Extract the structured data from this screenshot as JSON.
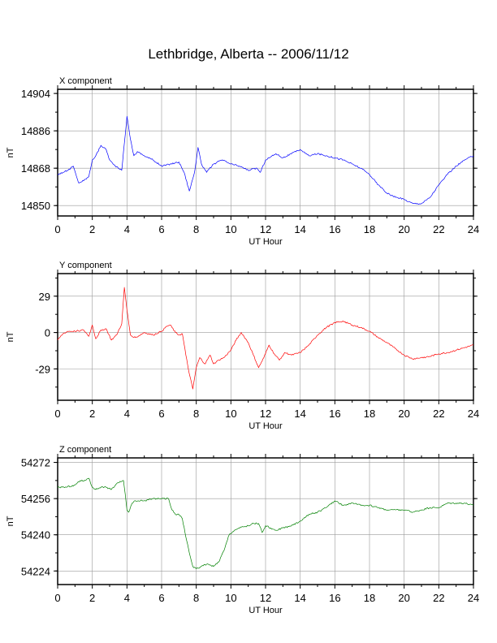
{
  "page": {
    "title": "Lethbridge, Alberta -- 2006/11/12"
  },
  "chart_data": [
    {
      "type": "line",
      "title": "X component",
      "xlabel": "UT Hour",
      "ylabel": "nT",
      "xlim": [
        0,
        24
      ],
      "ylim": [
        14845,
        14906
      ],
      "xticks": [
        0,
        2,
        4,
        6,
        8,
        10,
        12,
        14,
        16,
        18,
        20,
        22,
        24
      ],
      "yticks": [
        14850,
        14868,
        14886,
        14904
      ],
      "grid": true,
      "color": "#0000ff",
      "series": [
        {
          "x": [
            0,
            0.3,
            0.6,
            0.9,
            1.2,
            1.5,
            1.8,
            2.0,
            2.2,
            2.5,
            2.8,
            3.0,
            3.2,
            3.5,
            3.7,
            3.85,
            4.0,
            4.2,
            4.4,
            4.6,
            5.0,
            5.5,
            6.0,
            6.5,
            7.0,
            7.3,
            7.6,
            7.9,
            8.1,
            8.3,
            8.6,
            9.0,
            9.5,
            10.0,
            10.5,
            11.0,
            11.5,
            11.7,
            12.0,
            12.2,
            12.6,
            13.0,
            13.5,
            14.0,
            14.5,
            15.0,
            15.5,
            16.0,
            16.5,
            17.0,
            17.5,
            18.0,
            18.5,
            19.0,
            19.5,
            20.0,
            20.5,
            21.0,
            21.5,
            22.0,
            22.5,
            23.0,
            23.5,
            24.0
          ],
          "y": [
            14865,
            14866,
            14867,
            14869,
            14861,
            14862,
            14864,
            14872,
            14874,
            14879,
            14877,
            14872,
            14870,
            14868,
            14867,
            14880,
            14893,
            14882,
            14874,
            14876,
            14874,
            14872,
            14869,
            14870,
            14871,
            14866,
            14857,
            14866,
            14878,
            14870,
            14866,
            14870,
            14872,
            14870,
            14869,
            14867,
            14868,
            14866,
            14872,
            14873,
            14875,
            14873,
            14875,
            14877,
            14874,
            14875,
            14874,
            14873,
            14872,
            14870,
            14868,
            14865,
            14860,
            14856,
            14854,
            14853,
            14851,
            14851,
            14854,
            14860,
            14865,
            14869,
            14872,
            14874
          ]
        }
      ]
    },
    {
      "type": "line",
      "title": "Y component",
      "xlabel": "UT Hour",
      "ylabel": "nT",
      "xlim": [
        0,
        24
      ],
      "ylim": [
        -54,
        47
      ],
      "xticks": [
        0,
        2,
        4,
        6,
        8,
        10,
        12,
        14,
        16,
        18,
        20,
        22,
        24
      ],
      "yticks": [
        -29,
        0,
        29
      ],
      "grid": true,
      "color": "#ff0000",
      "series": [
        {
          "x": [
            0,
            0.3,
            0.6,
            1.0,
            1.5,
            1.8,
            2.0,
            2.2,
            2.5,
            2.8,
            3.1,
            3.4,
            3.7,
            3.85,
            4.0,
            4.2,
            4.5,
            5.0,
            5.5,
            6.0,
            6.3,
            6.5,
            6.8,
            7.0,
            7.2,
            7.4,
            7.6,
            7.8,
            8.0,
            8.2,
            8.5,
            8.8,
            9.0,
            9.3,
            9.6,
            10.0,
            10.3,
            10.6,
            11.0,
            11.3,
            11.6,
            11.9,
            12.2,
            12.5,
            12.8,
            13.1,
            13.5,
            14.0,
            14.5,
            15.0,
            15.5,
            16.0,
            16.5,
            17.0,
            17.5,
            18.0,
            18.5,
            19.0,
            19.5,
            20.0,
            20.5,
            21.0,
            21.5,
            22.0,
            22.5,
            23.0,
            23.5,
            24.0
          ],
          "y": [
            -6,
            -1,
            1,
            1,
            2,
            -3,
            6,
            -5,
            2,
            3,
            -6,
            -2,
            7,
            36,
            18,
            -2,
            -4,
            0,
            -2,
            1,
            5,
            6,
            0,
            -2,
            -1,
            -18,
            -33,
            -45,
            -28,
            -20,
            -25,
            -18,
            -25,
            -22,
            -20,
            -14,
            -6,
            0,
            -8,
            -18,
            -28,
            -20,
            -10,
            -17,
            -22,
            -16,
            -18,
            -16,
            -10,
            -2,
            4,
            8,
            9,
            6,
            4,
            1,
            -4,
            -8,
            -13,
            -18,
            -21,
            -20,
            -19,
            -17,
            -16,
            -14,
            -12,
            -10
          ]
        }
      ]
    },
    {
      "type": "line",
      "title": "Z component",
      "xlabel": "UT Hour",
      "ylabel": "nT",
      "xlim": [
        0,
        24
      ],
      "ylim": [
        54218,
        54274
      ],
      "xticks": [
        0,
        2,
        4,
        6,
        8,
        10,
        12,
        14,
        16,
        18,
        20,
        22,
        24
      ],
      "yticks": [
        54224,
        54240,
        54256,
        54272
      ],
      "grid": true,
      "color": "#008000",
      "series": [
        {
          "x": [
            0,
            0.5,
            1.0,
            1.3,
            1.6,
            1.8,
            2.0,
            2.2,
            2.5,
            2.8,
            3.1,
            3.5,
            3.8,
            3.9,
            4.0,
            4.1,
            4.3,
            4.5,
            5.0,
            5.5,
            6.0,
            6.4,
            6.6,
            6.8,
            7.0,
            7.2,
            7.4,
            7.6,
            7.8,
            8.0,
            8.3,
            8.6,
            9.0,
            9.3,
            9.6,
            9.9,
            10.2,
            10.5,
            11.0,
            11.3,
            11.6,
            11.8,
            12.0,
            12.3,
            12.6,
            13.0,
            13.5,
            14.0,
            14.5,
            15.0,
            15.5,
            16.0,
            16.5,
            17.0,
            17.5,
            18.0,
            18.5,
            19.0,
            19.5,
            20.0,
            20.5,
            21.0,
            21.5,
            22.0,
            22.5,
            23.0,
            23.5,
            24.0
          ],
          "y": [
            54261,
            54261,
            54262,
            54264,
            54264,
            54265,
            54261,
            54260,
            54261,
            54261,
            54260,
            54263,
            54264,
            54258,
            54251,
            54250,
            54254,
            54255,
            54255,
            54256,
            54256,
            54256,
            54251,
            54249,
            54249,
            54247,
            54239,
            54232,
            54226,
            54225,
            54226,
            54227,
            54226,
            54228,
            54233,
            54240,
            54242,
            54243,
            54244,
            54245,
            54245,
            54241,
            54244,
            54243,
            54242,
            54243,
            54244,
            54246,
            54249,
            54250,
            54252,
            54255,
            54253,
            54254,
            54253,
            54253,
            54252,
            54251,
            54251,
            54251,
            54250,
            54251,
            54252,
            54252,
            54254,
            54254,
            54254,
            54253
          ]
        }
      ]
    }
  ]
}
